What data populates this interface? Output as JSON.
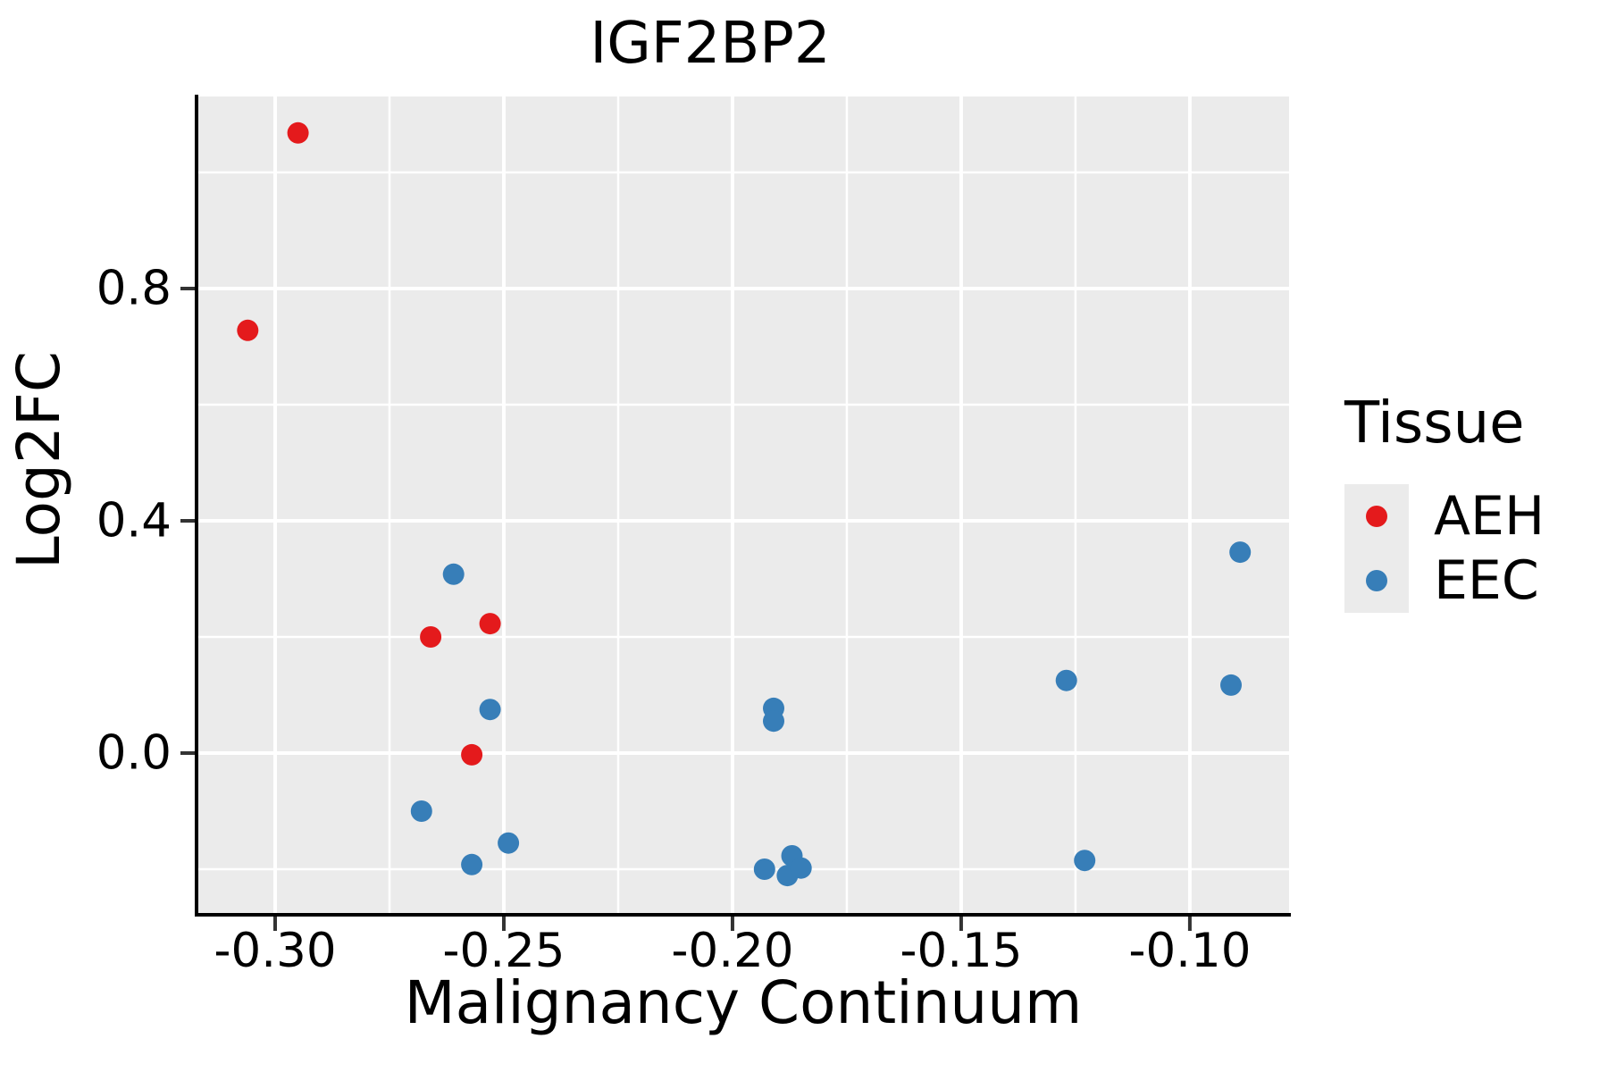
{
  "title": "IGF2BP2",
  "chart_data": {
    "type": "scatter",
    "title": "IGF2BP2",
    "xlabel": "Malignancy Continuum",
    "ylabel": "Log2FC",
    "xlim": [
      -0.3168,
      -0.0783
    ],
    "ylim": [
      -0.2754,
      1.1308
    ],
    "grid": true,
    "legend_position": "right",
    "panel_bg": "#EBEBEB",
    "grid_color": "#FFFFFF",
    "axis_color": "#000000",
    "tick_color": "#333333",
    "x_major_ticks": [
      {
        "value": -0.3,
        "label": "-0.30"
      },
      {
        "value": -0.25,
        "label": "-0.25"
      },
      {
        "value": -0.2,
        "label": "-0.20"
      },
      {
        "value": -0.15,
        "label": "-0.15"
      },
      {
        "value": -0.1,
        "label": "-0.10"
      }
    ],
    "y_major_ticks": [
      {
        "value": 0.0,
        "label": "0.0"
      },
      {
        "value": 0.4,
        "label": "0.4"
      },
      {
        "value": 0.8,
        "label": "0.8"
      }
    ],
    "x_minor_ticks": [
      -0.275,
      -0.225,
      -0.175,
      -0.125
    ],
    "y_minor_ticks": [
      -0.2,
      0.2,
      0.6,
      1.0
    ],
    "point_radius_px": 12,
    "series": [
      {
        "name": "AEH",
        "color": "#E41A1C",
        "points": [
          [
            -0.295,
            1.068
          ],
          [
            -0.306,
            0.728
          ],
          [
            -0.266,
            0.2
          ],
          [
            -0.253,
            0.223
          ],
          [
            -0.257,
            -0.003
          ]
        ]
      },
      {
        "name": "EEC",
        "color": "#377EB8",
        "points": [
          [
            -0.261,
            0.308
          ],
          [
            -0.253,
            0.075
          ],
          [
            -0.268,
            -0.1
          ],
          [
            -0.249,
            -0.155
          ],
          [
            -0.257,
            -0.192
          ],
          [
            -0.191,
            0.077
          ],
          [
            -0.191,
            0.055
          ],
          [
            -0.193,
            -0.2
          ],
          [
            -0.187,
            -0.177
          ],
          [
            -0.188,
            -0.211
          ],
          [
            -0.185,
            -0.198
          ],
          [
            -0.127,
            0.125
          ],
          [
            -0.123,
            -0.185
          ],
          [
            -0.089,
            0.346
          ],
          [
            -0.091,
            0.117
          ]
        ]
      }
    ]
  },
  "legend": {
    "title": "Tissue",
    "entries": [
      {
        "label": "AEH",
        "color": "#E41A1C"
      },
      {
        "label": "EEC",
        "color": "#377EB8"
      }
    ]
  }
}
